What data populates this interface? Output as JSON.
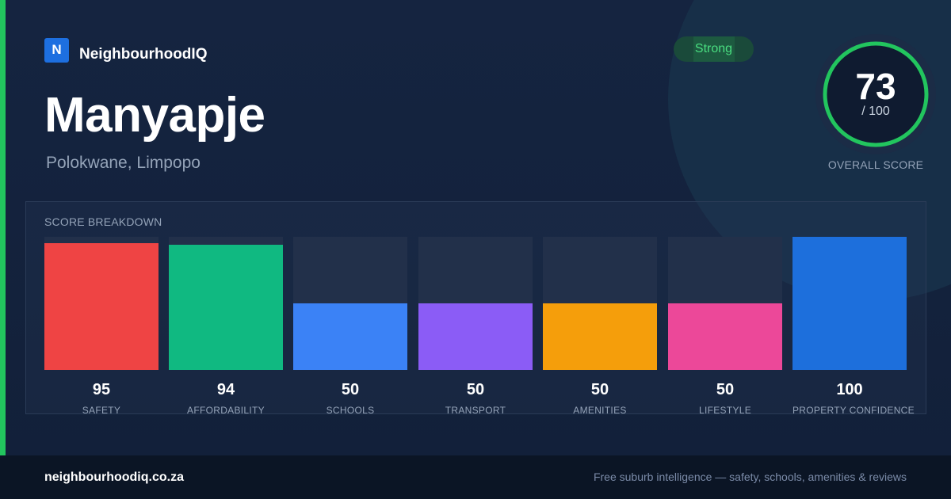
{
  "brand": {
    "logo_letter": "N",
    "name": "NeighbourhoodIQ"
  },
  "suburb": {
    "name": "Manyapje",
    "location": "Polokwane, Limpopo"
  },
  "rating": {
    "badge": "Strong",
    "badge_color": "#4ade80"
  },
  "overall": {
    "score": "73",
    "max": "/ 100",
    "label": "OVERALL SCORE",
    "value": 73,
    "ring_color": "#22c55e"
  },
  "breakdown": {
    "title": "SCORE BREAKDOWN",
    "items": [
      {
        "label": "SAFETY",
        "value": "95",
        "score": 95,
        "color": "#ef4444"
      },
      {
        "label": "AFFORDABILITY",
        "value": "94",
        "score": 94,
        "color": "#10b981"
      },
      {
        "label": "SCHOOLS",
        "value": "50",
        "score": 50,
        "color": "#3b82f6"
      },
      {
        "label": "TRANSPORT",
        "value": "50",
        "score": 50,
        "color": "#8b5cf6"
      },
      {
        "label": "AMENITIES",
        "value": "50",
        "score": 50,
        "color": "#f59e0b"
      },
      {
        "label": "LIFESTYLE",
        "value": "50",
        "score": 50,
        "color": "#ec4899"
      },
      {
        "label": "PROPERTY CONFIDENCE",
        "value": "100",
        "score": 100,
        "color": "#1d6fdc"
      }
    ]
  },
  "footer": {
    "domain": "neighbourhoodiq.co.za",
    "tagline": "Free suburb intelligence — safety, schools, amenities & reviews"
  },
  "colors": {
    "accent": "#22c55e",
    "background": "#13213b",
    "brand": "#1d6fe0"
  }
}
